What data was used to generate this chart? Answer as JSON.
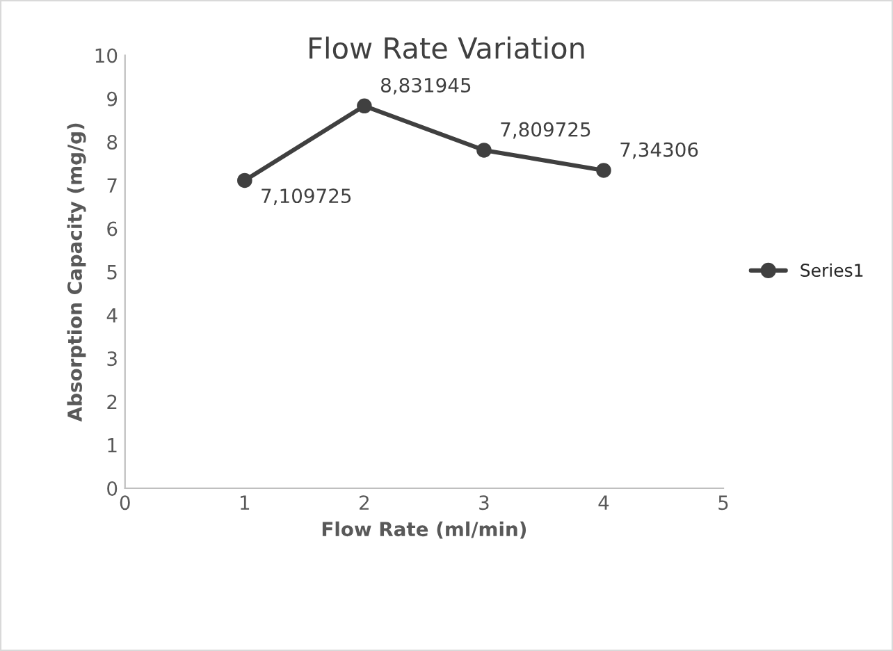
{
  "chart_data": {
    "type": "line",
    "title": "Flow Rate Variation",
    "xlabel": "Flow Rate (ml/min)",
    "ylabel": "Absorption Capacity (mg/g)",
    "x": [
      1,
      2,
      3,
      4
    ],
    "series": [
      {
        "name": "Series1",
        "color": "#404040",
        "values": [
          7.109725,
          8.831945,
          7.809725,
          7.34306
        ],
        "value_labels": [
          "7,109725",
          "8,831945",
          "7,809725",
          "7,34306"
        ]
      }
    ],
    "xlim": [
      0,
      5
    ],
    "xticks": [
      0,
      1,
      2,
      3,
      4,
      5
    ],
    "ylim": [
      0,
      10
    ],
    "yticks": [
      0,
      1,
      2,
      3,
      4,
      5,
      6,
      7,
      8,
      9,
      10
    ],
    "grid": false,
    "legend": "right",
    "marker": "circle",
    "line_style": "solid"
  }
}
